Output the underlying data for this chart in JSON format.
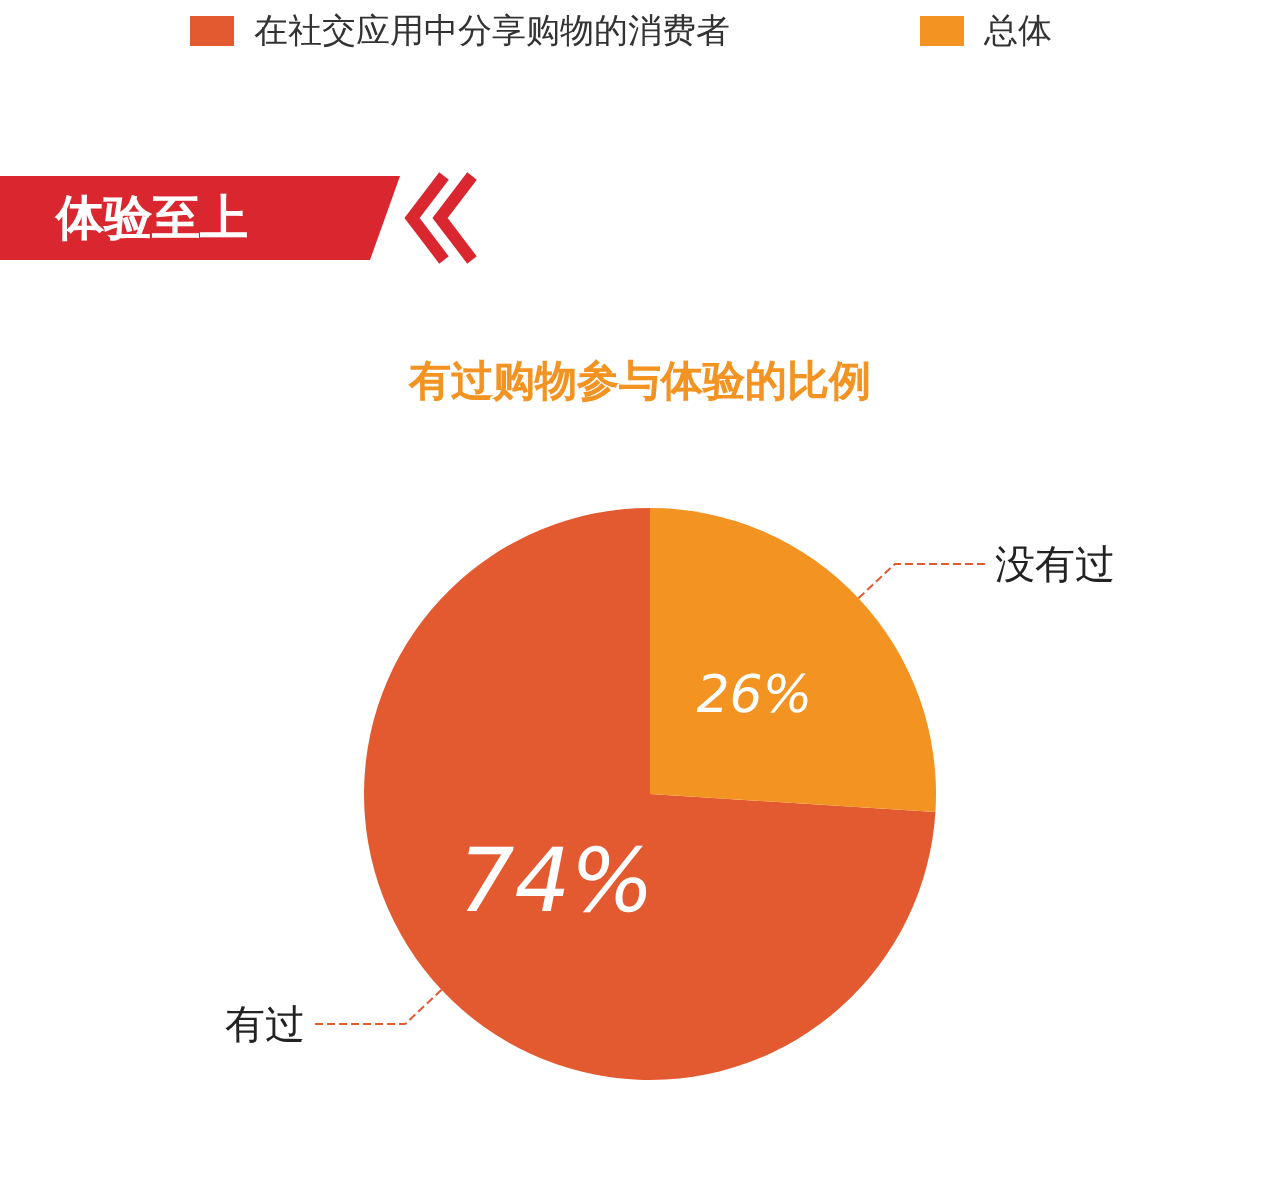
{
  "chart_data": {
    "type": "pie",
    "title": "有过购物参与体验的比例",
    "categories": [
      "有过",
      "没有过"
    ],
    "values": [
      74,
      26
    ],
    "colors": [
      "#e35a30",
      "#f39322"
    ],
    "value_labels": [
      "74%",
      "26%"
    ],
    "annotations": [
      "在社交应用中分享购物的消费者",
      "总体",
      "体验至上"
    ]
  }
}
